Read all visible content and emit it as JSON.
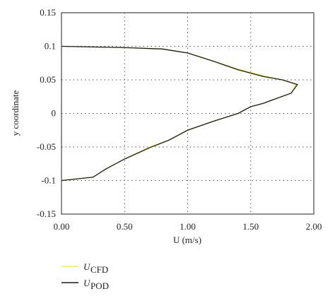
{
  "chart_data": {
    "type": "line",
    "xlabel": "U (m/s)",
    "ylabel": "y coordinate",
    "xlim": [
      0,
      2
    ],
    "ylim": [
      -0.15,
      0.15
    ],
    "xticks": [
      {
        "value": 0,
        "label": "0.00"
      },
      {
        "value": 0.5,
        "label": "0.50"
      },
      {
        "value": 1,
        "label": "1.00"
      },
      {
        "value": 1.5,
        "label": "1.50"
      },
      {
        "value": 2,
        "label": "2.00"
      }
    ],
    "yticks": [
      -0.15,
      -0.1,
      -0.05,
      0,
      0.05,
      0.1,
      0.15
    ],
    "grid": true,
    "series": [
      {
        "name": "U",
        "name_subscript": "CFD",
        "color": "#f2f23a",
        "x": [
          0,
          0.5,
          0.8,
          1.0,
          1.2,
          1.4,
          1.6,
          1.75,
          1.86,
          1.82,
          1.7,
          1.6,
          1.5,
          1.4,
          1.2,
          1.0,
          0.85,
          0.7,
          0.5,
          0.35,
          0.25,
          0.1,
          0
        ],
        "values": [
          0.1,
          0.098,
          0.096,
          0.09,
          0.078,
          0.066,
          0.056,
          0.05,
          0.043,
          0.03,
          0.022,
          0.015,
          0.01,
          0.0,
          -0.012,
          -0.025,
          -0.04,
          -0.05,
          -0.068,
          -0.083,
          -0.095,
          -0.098,
          -0.1
        ]
      },
      {
        "name": "U",
        "name_subscript": "POD",
        "color": "#1a1a1a",
        "x": [
          0,
          0.5,
          0.8,
          1.0,
          1.2,
          1.4,
          1.6,
          1.75,
          1.87,
          1.82,
          1.7,
          1.6,
          1.5,
          1.4,
          1.2,
          1.0,
          0.85,
          0.7,
          0.5,
          0.35,
          0.25,
          0.1,
          0
        ],
        "values": [
          0.1,
          0.098,
          0.096,
          0.09,
          0.078,
          0.065,
          0.055,
          0.05,
          0.043,
          0.03,
          0.022,
          0.015,
          0.01,
          0.0,
          -0.012,
          -0.025,
          -0.04,
          -0.051,
          -0.068,
          -0.083,
          -0.095,
          -0.098,
          -0.1
        ]
      }
    ],
    "legend": "bottom-left"
  }
}
